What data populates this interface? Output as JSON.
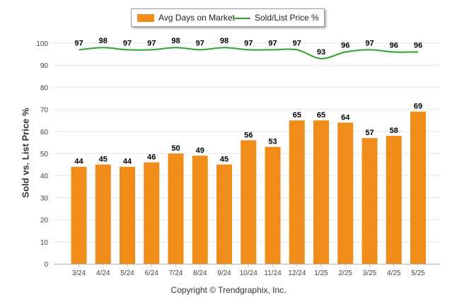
{
  "legend": {
    "bar_label": "Avg Days on Market",
    "line_label": "Sold/List Price %"
  },
  "copyright": "Copyright © Trendgraphix, Inc.",
  "colors": {
    "bar": "#f08c1a",
    "line": "#2aa52a",
    "grid": "#e6e6e6"
  },
  "chart_data": {
    "type": "bar",
    "ylabel": "Sold vs. List Price %",
    "ylim": [
      0,
      100
    ],
    "yticks": [
      0,
      10,
      20,
      30,
      40,
      50,
      60,
      70,
      80,
      90,
      100
    ],
    "grid": true,
    "legend_position": "top",
    "categories": [
      "3/24",
      "4/24",
      "5/24",
      "6/24",
      "7/24",
      "8/24",
      "9/24",
      "10/24",
      "11/24",
      "12/24",
      "1/25",
      "2/25",
      "3/25",
      "4/25",
      "5/25"
    ],
    "series": [
      {
        "name": "Avg Days on Market",
        "type": "bar",
        "values": [
          44,
          45,
          44,
          46,
          50,
          49,
          45,
          56,
          53,
          65,
          65,
          64,
          57,
          58,
          69
        ]
      },
      {
        "name": "Sold/List Price %",
        "type": "line",
        "values": [
          97,
          98,
          97,
          97,
          98,
          97,
          98,
          97,
          97,
          97,
          93,
          96,
          97,
          96,
          96
        ]
      }
    ]
  }
}
